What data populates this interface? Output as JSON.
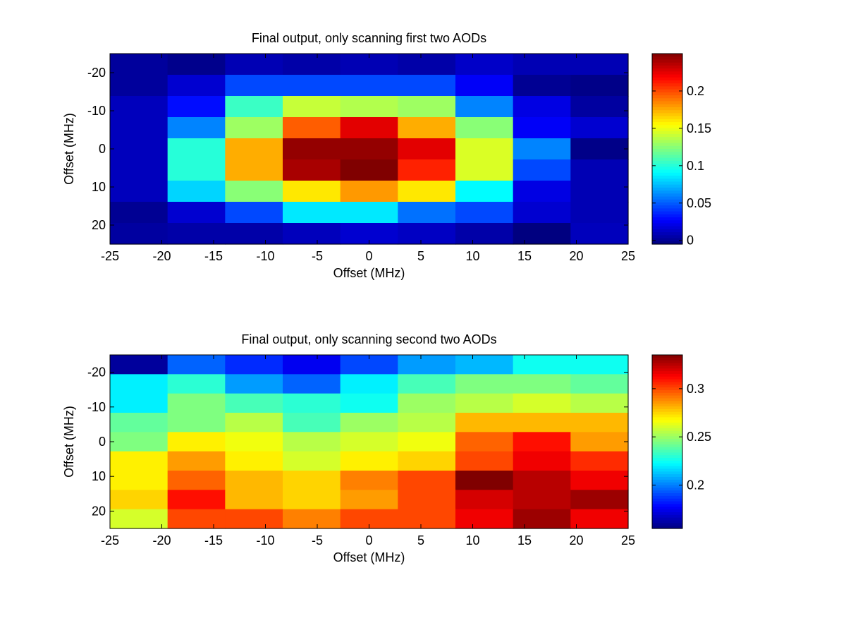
{
  "chart_data": [
    {
      "type": "heatmap",
      "title": "Final output, only scanning first two AODs",
      "xlabel": "Offset (MHz)",
      "ylabel": "Offset (MHz)",
      "x_ticks": [
        "-25",
        "-20",
        "-15",
        "-10",
        "-5",
        "0",
        "5",
        "10",
        "15",
        "20",
        "25"
      ],
      "y_ticks": [
        "-20",
        "-10",
        "0",
        "10",
        "20"
      ],
      "x": [
        -22.2,
        -16.7,
        -11.1,
        -5.6,
        0,
        5.6,
        11.1,
        16.7,
        22.2
      ],
      "y": [
        -22.2,
        -16.7,
        -11.1,
        -5.6,
        0,
        5.6,
        11.1,
        16.7,
        22.2
      ],
      "xlim": [
        -25,
        25
      ],
      "ylim": [
        -25,
        25
      ],
      "y_reversed": true,
      "colorscale": "jet",
      "clim": [
        -0.005,
        0.25
      ],
      "colorbar_ticks": [
        "0",
        "0.05",
        "0.1",
        "0.15",
        "0.2"
      ],
      "z": [
        [
          0.002,
          -0.002,
          0.008,
          0.005,
          0.008,
          0.005,
          0.013,
          0.008,
          0.008
        ],
        [
          0.002,
          0.015,
          0.045,
          0.045,
          0.045,
          0.045,
          0.025,
          0.0,
          -0.003
        ],
        [
          0.01,
          0.03,
          0.105,
          0.14,
          0.135,
          0.13,
          0.06,
          0.02,
          0.003
        ],
        [
          0.01,
          0.06,
          0.13,
          0.195,
          0.225,
          0.175,
          0.125,
          0.025,
          0.015
        ],
        [
          0.01,
          0.1,
          0.175,
          0.245,
          0.245,
          0.225,
          0.145,
          0.06,
          -0.003
        ],
        [
          0.01,
          0.1,
          0.175,
          0.24,
          0.25,
          0.21,
          0.145,
          0.045,
          0.008
        ],
        [
          0.01,
          0.08,
          0.125,
          0.16,
          0.18,
          0.16,
          0.09,
          0.02,
          0.008
        ],
        [
          0.0,
          0.015,
          0.045,
          0.085,
          0.085,
          0.055,
          0.045,
          0.015,
          0.008
        ],
        [
          0.003,
          0.005,
          0.005,
          0.01,
          0.015,
          0.012,
          0.005,
          -0.005,
          0.01
        ]
      ]
    },
    {
      "type": "heatmap",
      "title": "Final output, only scanning second two AODs",
      "xlabel": "Offset (MHz)",
      "ylabel": "Offset (MHz)",
      "x_ticks": [
        "-25",
        "-20",
        "-15",
        "-10",
        "-5",
        "0",
        "5",
        "10",
        "15",
        "20",
        "25"
      ],
      "y_ticks": [
        "-20",
        "-10",
        "0",
        "10",
        "20"
      ],
      "x": [
        -22.2,
        -16.7,
        -11.1,
        -5.6,
        0,
        5.6,
        11.1,
        16.7,
        22.2
      ],
      "y": [
        -22.2,
        -16.7,
        -11.1,
        -5.6,
        0,
        5.6,
        11.1,
        16.7,
        22.2
      ],
      "xlim": [
        -25,
        25
      ],
      "ylim": [
        -25,
        25
      ],
      "y_reversed": true,
      "colorscale": "jet",
      "clim": [
        0.155,
        0.335
      ],
      "colorbar_ticks": [
        "0.2",
        "0.25",
        "0.3"
      ],
      "z": [
        [
          0.16,
          0.195,
          0.185,
          0.175,
          0.19,
          0.205,
          0.21,
          0.225,
          0.225
        ],
        [
          0.22,
          0.23,
          0.205,
          0.195,
          0.22,
          0.235,
          0.245,
          0.245,
          0.24
        ],
        [
          0.22,
          0.245,
          0.235,
          0.23,
          0.225,
          0.25,
          0.255,
          0.26,
          0.255
        ],
        [
          0.24,
          0.245,
          0.255,
          0.235,
          0.25,
          0.255,
          0.28,
          0.28,
          0.28
        ],
        [
          0.245,
          0.27,
          0.265,
          0.255,
          0.26,
          0.265,
          0.295,
          0.31,
          0.285
        ],
        [
          0.27,
          0.285,
          0.27,
          0.26,
          0.27,
          0.275,
          0.3,
          0.315,
          0.305
        ],
        [
          0.27,
          0.295,
          0.28,
          0.275,
          0.29,
          0.3,
          0.335,
          0.325,
          0.315
        ],
        [
          0.275,
          0.31,
          0.28,
          0.275,
          0.285,
          0.3,
          0.32,
          0.325,
          0.33
        ],
        [
          0.26,
          0.3,
          0.3,
          0.29,
          0.3,
          0.3,
          0.315,
          0.33,
          0.315
        ]
      ]
    }
  ]
}
